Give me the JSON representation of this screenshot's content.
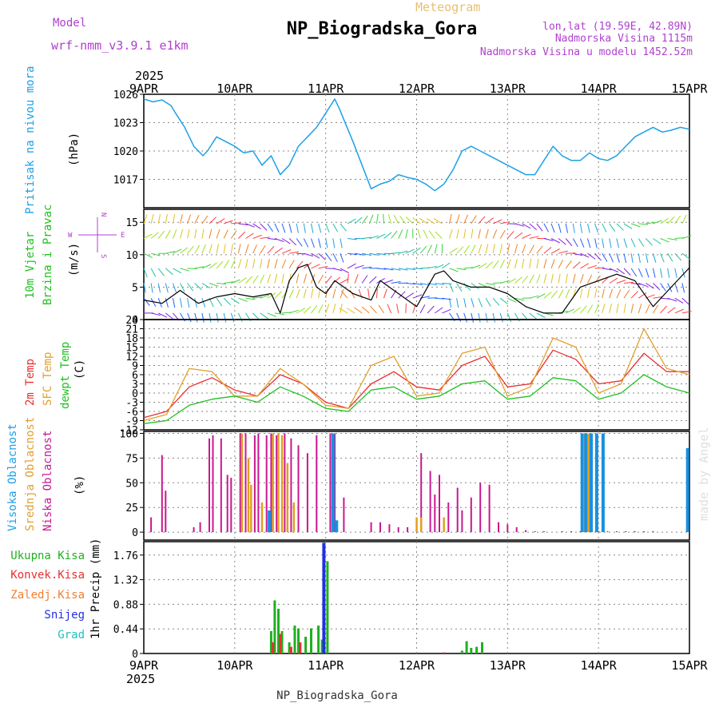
{
  "header": {
    "model_label": "Model",
    "model_name": "wrf-nmm_v3.9.1 e1km",
    "meteogram_label": "Meteogram",
    "station_title": "NP_Biogradska_Gora",
    "lonlat": "lon,lat (19.59E, 42.89N)",
    "altitude": "Nadmorska Visina 1115m",
    "model_altitude": "Nadmorska Visina u modelu 1452.52m"
  },
  "footer": {
    "station_name": "NP_Biogradska_Gora",
    "watermark": "made by Angel"
  },
  "time_axis": {
    "year": "2025",
    "ticks": [
      "9APR",
      "10APR",
      "11APR",
      "12APR",
      "13APR",
      "14APR",
      "15APR"
    ]
  },
  "colors": {
    "pressure": "#1ea0e6",
    "wind_speed": "#000000",
    "gust": "#ff3030",
    "t2m": "#e83030",
    "sfc": "#e0a030",
    "dewpoint": "#20c020",
    "high_cloud": "#1890e0",
    "mid_cloud": "#e0a020",
    "low_cloud": "#c81890",
    "total_precip": "#20b020",
    "conv_precip": "#e83030",
    "frozen_precip": "#f08030",
    "snow": "#2030e0",
    "hail": "#20c0c0",
    "wind_compass": "#b040d0"
  },
  "panels": {
    "pressure": {
      "label": "Pritisak na nivou mora",
      "unit": "(hPa)"
    },
    "wind": {
      "label1": "10m Vjetar",
      "label2": "Brzina i Pravac",
      "unit": "(m/s)",
      "compass": {
        "n": "N",
        "s": "S",
        "e": "E",
        "w": "W"
      }
    },
    "temp": {
      "label1": "2m Temp",
      "label2": "SFC Temp",
      "label3": "dewpt Temp",
      "unit": "(C)"
    },
    "cloud": {
      "label1": "Visoka Oblacnost",
      "label2": "Srednja Oblacnost",
      "label3": "Niska Oblacnost",
      "unit": "(%)"
    },
    "precip": {
      "legend": [
        "Ukupna Kisa",
        "Konvek.Kisa",
        "Zaledj.Kisa",
        "Snijeg",
        "Grad"
      ],
      "unit": "1hr Precip (mm)"
    }
  },
  "chart_data": [
    {
      "type": "line",
      "id": "pressure",
      "ylim": [
        1014,
        1026
      ],
      "yticks": [
        "1017",
        "1020",
        "1023",
        "1026"
      ],
      "x_days": [
        0,
        0.1,
        0.2,
        0.3,
        0.35,
        0.45,
        0.55,
        0.65,
        0.7,
        0.8,
        0.9,
        1.0,
        1.1,
        1.2,
        1.3,
        1.4,
        1.5,
        1.55,
        1.6,
        1.7,
        1.8,
        1.9,
        2.0,
        2.1,
        2.15,
        2.3,
        2.4,
        2.5,
        2.6,
        2.7,
        2.8,
        2.9,
        3.0,
        3.1,
        3.2,
        3.3,
        3.4,
        3.5,
        3.6,
        3.7,
        3.8,
        3.9,
        4.0,
        4.1,
        4.2,
        4.3,
        4.4,
        4.5,
        4.6,
        4.7,
        4.8,
        4.9,
        5.0,
        5.1,
        5.2,
        5.3,
        5.4,
        5.5,
        5.6,
        5.7,
        5.8,
        5.9,
        6.0
      ],
      "values": [
        1025.5,
        1025.2,
        1025.4,
        1024.8,
        1024.0,
        1022.5,
        1020.5,
        1019.5,
        1020.0,
        1021.5,
        1021.0,
        1020.5,
        1019.8,
        1020.0,
        1018.5,
        1019.5,
        1017.5,
        1018.0,
        1018.5,
        1020.5,
        1021.5,
        1022.5,
        1024.0,
        1025.5,
        1024.5,
        1021.0,
        1018.5,
        1016.0,
        1016.5,
        1016.8,
        1017.5,
        1017.2,
        1017.0,
        1016.5,
        1015.8,
        1016.5,
        1018.0,
        1020.0,
        1020.5,
        1020.0,
        1019.5,
        1019.0,
        1018.5,
        1018.0,
        1017.5,
        1017.5,
        1019.0,
        1020.5,
        1019.5,
        1019.0,
        1019.0,
        1019.8,
        1019.2,
        1019.0,
        1019.5,
        1020.5,
        1021.5,
        1022.0,
        1022.5,
        1022.0,
        1022.2,
        1022.5,
        1022.3
      ]
    },
    {
      "type": "line",
      "id": "wind_speed",
      "ylim": [
        0,
        17
      ],
      "yticks": [
        "0",
        "5",
        "10",
        "15"
      ],
      "x_days": [
        0,
        0.2,
        0.4,
        0.6,
        0.8,
        1.0,
        1.2,
        1.4,
        1.5,
        1.6,
        1.7,
        1.8,
        1.9,
        2.0,
        2.1,
        2.2,
        2.3,
        2.4,
        2.5,
        2.6,
        2.8,
        3.0,
        3.2,
        3.3,
        3.4,
        3.6,
        3.8,
        4.0,
        4.2,
        4.4,
        4.6,
        4.8,
        5.0,
        5.2,
        5.4,
        5.6,
        5.8,
        6.0
      ],
      "values": [
        3,
        2.5,
        4.5,
        2.5,
        3.5,
        4,
        3.5,
        4,
        1,
        6,
        8,
        8.5,
        5,
        4,
        6,
        5,
        4,
        3.5,
        3,
        6,
        4,
        2,
        7,
        7.5,
        6,
        5,
        5,
        4,
        2,
        1,
        1,
        5,
        6,
        7,
        6,
        2,
        5,
        8
      ]
    },
    {
      "type": "line",
      "id": "temperature",
      "ylim": [
        -12,
        24
      ],
      "yticks": [
        "-12",
        "-9",
        "-6",
        "-3",
        "0",
        "3",
        "6",
        "9",
        "12",
        "15",
        "18",
        "21",
        "24"
      ],
      "x_days": [
        0,
        0.25,
        0.5,
        0.75,
        1.0,
        1.25,
        1.5,
        1.75,
        2.0,
        2.25,
        2.5,
        2.75,
        3.0,
        3.25,
        3.5,
        3.75,
        4.0,
        4.25,
        4.5,
        4.75,
        5.0,
        5.25,
        5.5,
        5.75,
        6.0
      ],
      "series": [
        {
          "name": "2m Temp",
          "values": [
            -8,
            -6,
            2,
            5,
            1,
            -1,
            6,
            3,
            -3,
            -5,
            3,
            7,
            2,
            1,
            9,
            12,
            2,
            3,
            14,
            11,
            3,
            4,
            13,
            7,
            7
          ]
        },
        {
          "name": "SFC Temp",
          "values": [
            -9,
            -7,
            8,
            7,
            -1,
            -1,
            8,
            3,
            -4,
            -5,
            9,
            12,
            -1,
            0,
            13,
            15,
            -1,
            2,
            18,
            15,
            0,
            3,
            21,
            8,
            6
          ]
        },
        {
          "name": "dewpt Temp",
          "values": [
            -10,
            -9,
            -4,
            -2,
            -1,
            -3,
            2,
            -1,
            -5,
            -6,
            1,
            2,
            -2,
            -1,
            3,
            4,
            -2,
            -1,
            5,
            4,
            -2,
            0,
            6,
            2,
            0
          ]
        }
      ]
    },
    {
      "type": "bar",
      "id": "cloud",
      "ylim": [
        0,
        100
      ],
      "yticks": [
        "0",
        "25",
        "50",
        "75",
        "100"
      ],
      "series": [
        {
          "name": "Niska Oblacnost",
          "x_days": [
            0.08,
            0.2,
            0.24,
            0.55,
            0.62,
            0.72,
            0.76,
            0.85,
            0.92,
            0.96,
            1.06,
            1.12,
            1.22,
            1.26,
            1.35,
            1.4,
            1.46,
            1.55,
            1.62,
            1.7,
            1.8,
            1.9,
            2.05,
            2.1,
            2.2,
            2.5,
            2.6,
            2.7,
            2.8,
            2.9,
            3.05,
            3.15,
            3.2,
            3.25,
            3.35,
            3.45,
            3.5,
            3.6,
            3.7,
            3.8,
            3.9,
            4.0,
            4.1,
            4.2,
            4.3,
            4.4,
            4.6,
            4.7,
            4.8,
            4.9,
            5.0,
            5.1,
            5.2,
            5.3,
            5.4,
            5.5,
            5.6
          ],
          "values": [
            15,
            78,
            42,
            5,
            10,
            95,
            98,
            95,
            58,
            55,
            100,
            100,
            98,
            100,
            98,
            100,
            98,
            100,
            95,
            88,
            80,
            98,
            100,
            100,
            35,
            10,
            10,
            8,
            5,
            5,
            80,
            62,
            38,
            58,
            30,
            45,
            22,
            35,
            50,
            48,
            10,
            8,
            5,
            2,
            1,
            1,
            1,
            1,
            1,
            1,
            1,
            1,
            1,
            1,
            1,
            1,
            1
          ]
        },
        {
          "name": "Srednja Oblacnost",
          "x_days": [
            1.08,
            1.15,
            1.18,
            1.3,
            1.42,
            1.48,
            1.52,
            1.58,
            1.65,
            3.0,
            3.05,
            3.3,
            4.85,
            4.88,
            4.9
          ],
          "values": [
            100,
            75,
            48,
            30,
            100,
            100,
            98,
            70,
            30,
            15,
            15,
            15,
            100,
            100,
            100
          ]
        },
        {
          "name": "Visoka Oblacnost",
          "x_days": [
            1.38,
            2.08,
            2.12,
            4.82,
            4.86,
            4.92,
            4.98,
            5.05,
            5.98
          ],
          "values": [
            22,
            100,
            12,
            100,
            100,
            100,
            100,
            100,
            85
          ]
        }
      ]
    },
    {
      "type": "bar",
      "id": "precip",
      "ylim": [
        0,
        2.0
      ],
      "yticks": [
        "0",
        "0.44",
        "0.88",
        "1.32",
        "1.76"
      ],
      "series": [
        {
          "name": "Ukupna Kisa",
          "x_days": [
            1.4,
            1.44,
            1.48,
            1.52,
            1.6,
            1.66,
            1.7,
            1.78,
            1.84,
            1.92,
            1.96,
            2.02,
            3.5,
            3.55,
            3.6,
            3.66,
            3.72
          ],
          "values": [
            0.4,
            0.95,
            0.8,
            0.4,
            0.2,
            0.5,
            0.45,
            0.3,
            0.45,
            0.5,
            0.25,
            1.65,
            0.05,
            0.22,
            0.1,
            0.12,
            0.2
          ]
        },
        {
          "name": "Konvek.Kisa",
          "x_days": [
            1.42,
            1.5,
            1.62,
            1.72,
            3.3
          ],
          "values": [
            0.2,
            0.35,
            0.12,
            0.2,
            0.02
          ]
        },
        {
          "name": "Snijeg",
          "x_days": [
            1.98
          ],
          "values": [
            1.98
          ]
        }
      ]
    }
  ]
}
